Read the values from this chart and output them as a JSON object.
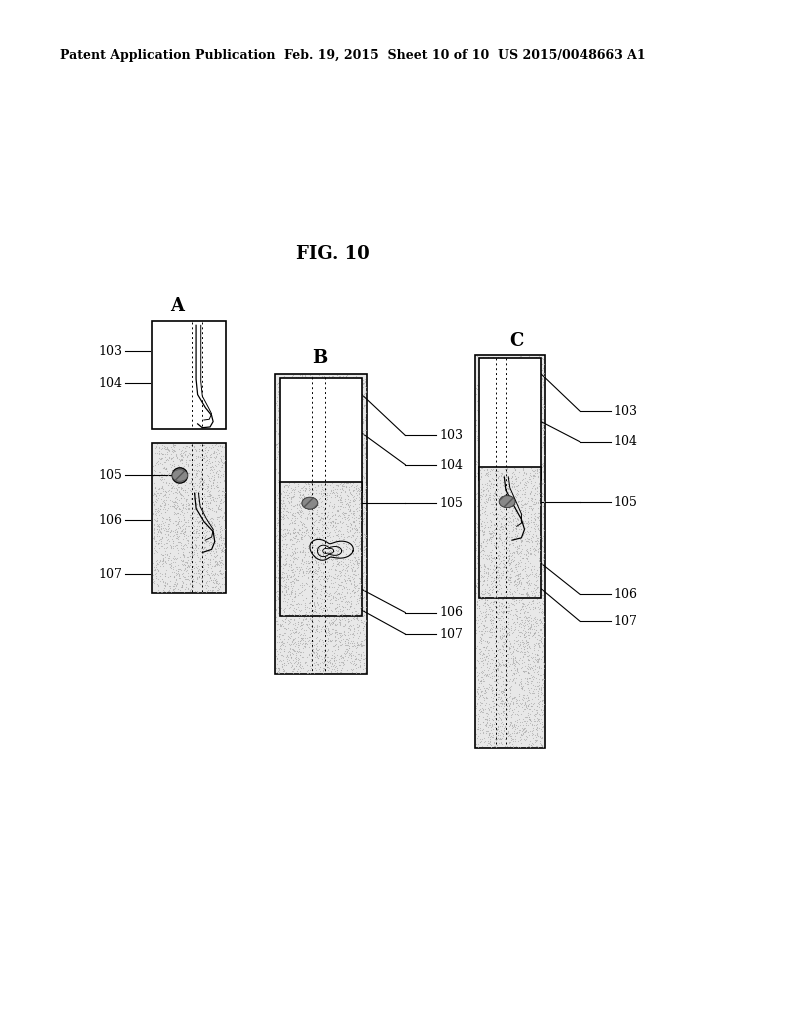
{
  "title": "FIG. 10",
  "header_left": "Patent Application Publication",
  "header_mid": "Feb. 19, 2015  Sheet 10 of 10",
  "header_right": "US 2015/0048663 A1",
  "fig_label_A": "A",
  "fig_label_B": "B",
  "fig_label_C": "C",
  "bg_color": "#ffffff",
  "line_color": "#000000",
  "stipple_light": "#e8e8e8",
  "stipple_dot": "#aaaaaa",
  "pin_fill": "#777777"
}
